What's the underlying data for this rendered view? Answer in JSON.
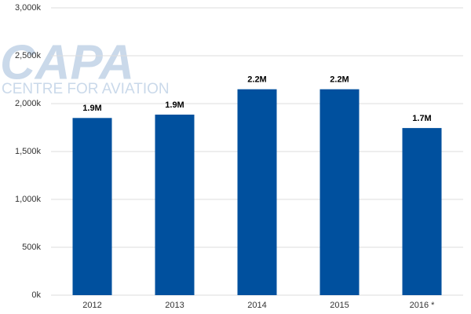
{
  "chart_data": {
    "type": "bar",
    "watermark": {
      "logo": "CAPA",
      "tagline": "CENTRE FOR AVIATION"
    },
    "categories": [
      "2012",
      "2013",
      "2014",
      "2015",
      "2016 *"
    ],
    "values": [
      1850000,
      1885000,
      2150000,
      2150000,
      1745000
    ],
    "value_labels": [
      "1.9M",
      "1.9M",
      "2.2M",
      "2.2M",
      "1.7M"
    ],
    "color": "#00509e",
    "ylim": [
      0,
      3000000
    ],
    "yticks": [
      {
        "value": 0,
        "label": "0k"
      },
      {
        "value": 500000,
        "label": "500k"
      },
      {
        "value": 1000000,
        "label": "1,000k"
      },
      {
        "value": 1500000,
        "label": "1,500k"
      },
      {
        "value": 2000000,
        "label": "2,000k"
      },
      {
        "value": 2500000,
        "label": "2,500k"
      },
      {
        "value": 3000000,
        "label": "3,000k"
      }
    ],
    "grid": true
  }
}
